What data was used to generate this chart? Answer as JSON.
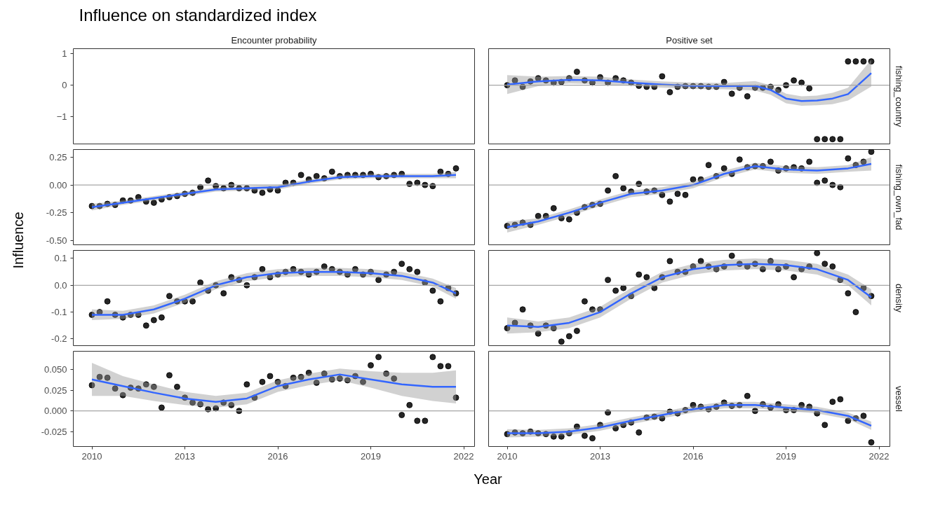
{
  "chart_data": [
    {
      "type": "scatter",
      "title": "Influence on standardized index",
      "subtitle": "Encounter probability",
      "xlabel": "Year",
      "ylabel": "Influence",
      "xlim": [
        2009.4,
        2022.35
      ],
      "ylim": [
        -1.85,
        1.15
      ],
      "yticks": [
        -1,
        0,
        1
      ],
      "tick_labels": "y"
    },
    {
      "type": "scatter",
      "subtitle": "Positive set",
      "y2label": "fishing_country",
      "xlim": [
        2009.4,
        2022.35
      ],
      "ylim": [
        -1.85,
        1.15
      ],
      "tick_labels": false,
      "marker": "circle",
      "ref_lines": [
        {
          "axis": "y",
          "value": 0
        }
      ],
      "x": [
        2010,
        2010.25,
        2010.5,
        2010.75,
        2011,
        2011.25,
        2011.5,
        2011.75,
        2012,
        2012.25,
        2012.5,
        2012.75,
        2013,
        2013.25,
        2013.5,
        2013.75,
        2014,
        2014.25,
        2014.5,
        2014.75,
        2015,
        2015.25,
        2015.5,
        2015.75,
        2016,
        2016.25,
        2016.5,
        2016.75,
        2017,
        2017.25,
        2017.5,
        2017.75,
        2018,
        2018.25,
        2018.5,
        2018.75,
        2019,
        2019.25,
        2019.5,
        2019.75,
        2020,
        2020.25,
        2020.5,
        2020.75,
        2021,
        2021.25,
        2021.5,
        2021.75
      ],
      "series": [
        {
          "type": "scatter",
          "color": "#000000",
          "values": [
            0.0,
            0.15,
            -0.05,
            0.12,
            0.22,
            0.15,
            0.08,
            0.1,
            0.22,
            0.42,
            0.15,
            0.08,
            0.25,
            0.08,
            0.22,
            0.15,
            0.08,
            -0.02,
            -0.05,
            -0.05,
            0.28,
            -0.22,
            -0.05,
            -0.03,
            -0.03,
            -0.03,
            -0.05,
            -0.05,
            0.1,
            -0.27,
            -0.08,
            -0.35,
            -0.08,
            -0.08,
            -0.05,
            -0.15,
            0.0,
            0.15,
            0.08,
            -0.1,
            -1.7,
            -1.7,
            -1.7,
            -1.7,
            0.75,
            0.75,
            0.75,
            0.75
          ]
        },
        {
          "type": "line",
          "color": "#3366ff",
          "x": [
            2010,
            2011,
            2012,
            2013,
            2014,
            2015,
            2016,
            2017,
            2018,
            2018.5,
            2019,
            2019.5,
            2020,
            2020.5,
            2021,
            2021.75
          ],
          "marker": "none",
          "values": [
            0.02,
            0.12,
            0.17,
            0.15,
            0.08,
            0.02,
            -0.02,
            -0.03,
            -0.02,
            -0.15,
            -0.42,
            -0.5,
            -0.48,
            -0.42,
            -0.28,
            0.38
          ],
          "lower": [
            -0.28,
            -0.03,
            0.05,
            0.03,
            -0.02,
            -0.08,
            -0.12,
            -0.13,
            -0.17,
            -0.3,
            -0.57,
            -0.65,
            -0.63,
            -0.6,
            -0.48,
            -0.04
          ],
          "upper": [
            0.32,
            0.27,
            0.29,
            0.27,
            0.18,
            0.12,
            0.08,
            0.07,
            0.13,
            0.0,
            -0.27,
            -0.35,
            -0.33,
            -0.24,
            -0.08,
            0.8
          ]
        }
      ]
    },
    {
      "type": "scatter",
      "xlim": [
        2009.4,
        2022.35
      ],
      "ylim": [
        -0.54,
        0.32
      ],
      "yticks": [
        {
          "value": -0.5,
          "label": "-0.50"
        },
        {
          "value": -0.25,
          "label": "-0.25"
        },
        {
          "value": 0,
          "label": "0.00"
        },
        {
          "value": 0.25,
          "label": "0.25"
        }
      ],
      "tick_labels": "y",
      "marker": "circle",
      "ref_lines": [
        {
          "axis": "y",
          "value": 0
        }
      ],
      "x": [
        2010,
        2010.25,
        2010.5,
        2010.75,
        2011,
        2011.25,
        2011.5,
        2011.75,
        2012,
        2012.25,
        2012.5,
        2012.75,
        2013,
        2013.25,
        2013.5,
        2013.75,
        2014,
        2014.25,
        2014.5,
        2014.75,
        2015,
        2015.25,
        2015.5,
        2015.75,
        2016,
        2016.25,
        2016.5,
        2016.75,
        2017,
        2017.25,
        2017.5,
        2017.75,
        2018,
        2018.25,
        2018.5,
        2018.75,
        2019,
        2019.25,
        2019.5,
        2019.75,
        2020,
        2020.25,
        2020.5,
        2020.75,
        2021,
        2021.25,
        2021.5,
        2021.75
      ],
      "series": [
        {
          "type": "scatter",
          "color": "#000000",
          "values": [
            -0.19,
            -0.19,
            -0.17,
            -0.18,
            -0.14,
            -0.14,
            -0.11,
            -0.15,
            -0.16,
            -0.13,
            -0.11,
            -0.1,
            -0.08,
            -0.07,
            -0.02,
            0.04,
            -0.01,
            -0.03,
            0.0,
            -0.03,
            -0.03,
            -0.05,
            -0.07,
            -0.04,
            -0.05,
            0.02,
            0.02,
            0.09,
            0.05,
            0.08,
            0.06,
            0.12,
            0.08,
            0.09,
            0.09,
            0.09,
            0.1,
            0.07,
            0.08,
            0.09,
            0.1,
            0.01,
            0.02,
            0.0,
            -0.01,
            0.12,
            0.1,
            0.15
          ]
        },
        {
          "type": "line",
          "color": "#3366ff",
          "x": [
            2010,
            2011,
            2012,
            2013,
            2014,
            2015,
            2016,
            2017,
            2018,
            2019,
            2020,
            2021,
            2021.75
          ],
          "marker": "none",
          "values": [
            -0.2,
            -0.16,
            -0.12,
            -0.08,
            -0.04,
            -0.03,
            -0.02,
            0.03,
            0.07,
            0.08,
            0.08,
            0.08,
            0.09
          ],
          "lower": [
            -0.23,
            -0.18,
            -0.14,
            -0.1,
            -0.06,
            -0.05,
            -0.04,
            0.01,
            0.05,
            0.06,
            0.06,
            0.06,
            0.06
          ],
          "upper": [
            -0.17,
            -0.14,
            -0.1,
            -0.06,
            -0.02,
            -0.01,
            0.0,
            0.05,
            0.09,
            0.1,
            0.1,
            0.1,
            0.12
          ]
        }
      ]
    },
    {
      "type": "scatter",
      "y2label": "fishing_own_fad",
      "xlim": [
        2009.4,
        2022.35
      ],
      "ylim": [
        -0.54,
        0.32
      ],
      "tick_labels": false,
      "marker": "circle",
      "ref_lines": [
        {
          "axis": "y",
          "value": 0
        }
      ],
      "x": [
        2010,
        2010.25,
        2010.5,
        2010.75,
        2011,
        2011.25,
        2011.5,
        2011.75,
        2012,
        2012.25,
        2012.5,
        2012.75,
        2013,
        2013.25,
        2013.5,
        2013.75,
        2014,
        2014.25,
        2014.5,
        2014.75,
        2015,
        2015.25,
        2015.5,
        2015.75,
        2016,
        2016.25,
        2016.5,
        2016.75,
        2017,
        2017.25,
        2017.5,
        2017.75,
        2018,
        2018.25,
        2018.5,
        2018.75,
        2019,
        2019.25,
        2019.5,
        2019.75,
        2020,
        2020.25,
        2020.5,
        2020.75,
        2021,
        2021.25,
        2021.5,
        2021.75
      ],
      "series": [
        {
          "type": "scatter",
          "color": "#000000",
          "values": [
            -0.37,
            -0.36,
            -0.34,
            -0.36,
            -0.28,
            -0.28,
            -0.21,
            -0.3,
            -0.31,
            -0.25,
            -0.2,
            -0.18,
            -0.17,
            -0.05,
            0.08,
            -0.03,
            -0.06,
            0.01,
            -0.06,
            -0.05,
            -0.09,
            -0.15,
            -0.08,
            -0.09,
            0.05,
            0.05,
            0.18,
            0.08,
            0.15,
            0.1,
            0.23,
            0.16,
            0.17,
            0.17,
            0.21,
            0.13,
            0.15,
            0.16,
            0.15,
            0.21,
            0.02,
            0.04,
            0.0,
            -0.02,
            0.24,
            0.18,
            0.21,
            0.3
          ]
        },
        {
          "type": "line",
          "color": "#3366ff",
          "x": [
            2010,
            2011,
            2012,
            2013,
            2014,
            2015,
            2016,
            2017,
            2018,
            2019,
            2020,
            2021,
            2021.75
          ],
          "marker": "none",
          "values": [
            -0.38,
            -0.33,
            -0.25,
            -0.16,
            -0.08,
            -0.05,
            0.0,
            0.1,
            0.17,
            0.14,
            0.13,
            0.15,
            0.19
          ],
          "lower": [
            -0.43,
            -0.36,
            -0.28,
            -0.19,
            -0.11,
            -0.08,
            -0.03,
            0.07,
            0.14,
            0.11,
            0.1,
            0.12,
            0.13
          ],
          "upper": [
            -0.33,
            -0.3,
            -0.22,
            -0.13,
            -0.05,
            -0.02,
            0.03,
            0.13,
            0.2,
            0.17,
            0.16,
            0.18,
            0.25
          ]
        }
      ]
    },
    {
      "type": "scatter",
      "xlim": [
        2009.4,
        2022.35
      ],
      "ylim": [
        -0.225,
        0.13
      ],
      "yticks": [
        {
          "value": -0.2,
          "label": "-0.2"
        },
        {
          "value": -0.1,
          "label": "-0.1"
        },
        {
          "value": 0,
          "label": "0.0"
        },
        {
          "value": 0.1,
          "label": "0.1"
        }
      ],
      "tick_labels": "y",
      "marker": "circle",
      "ref_lines": [
        {
          "axis": "y",
          "value": 0
        }
      ],
      "x": [
        2010,
        2010.25,
        2010.5,
        2010.75,
        2011,
        2011.25,
        2011.5,
        2011.75,
        2012,
        2012.25,
        2012.5,
        2012.75,
        2013,
        2013.25,
        2013.5,
        2013.75,
        2014,
        2014.25,
        2014.5,
        2014.75,
        2015,
        2015.25,
        2015.5,
        2015.75,
        2016,
        2016.25,
        2016.5,
        2016.75,
        2017,
        2017.25,
        2017.5,
        2017.75,
        2018,
        2018.25,
        2018.5,
        2018.75,
        2019,
        2019.25,
        2019.5,
        2019.75,
        2020,
        2020.25,
        2020.5,
        2020.75,
        2021,
        2021.25,
        2021.5,
        2021.75
      ],
      "series": [
        {
          "type": "scatter",
          "color": "#000000",
          "values": [
            -0.11,
            -0.1,
            -0.06,
            -0.11,
            -0.12,
            -0.11,
            -0.11,
            -0.15,
            -0.13,
            -0.12,
            -0.04,
            -0.06,
            -0.06,
            -0.06,
            0.01,
            -0.02,
            0.0,
            -0.03,
            0.03,
            0.02,
            0.0,
            0.03,
            0.06,
            0.03,
            0.04,
            0.05,
            0.06,
            0.05,
            0.04,
            0.05,
            0.07,
            0.06,
            0.05,
            0.04,
            0.06,
            0.04,
            0.05,
            0.02,
            0.04,
            0.05,
            0.08,
            0.06,
            0.05,
            0.01,
            -0.02,
            -0.06,
            -0.01,
            -0.03
          ]
        },
        {
          "type": "line",
          "color": "#3366ff",
          "x": [
            2010,
            2011,
            2012,
            2013,
            2014,
            2015,
            2016,
            2017,
            2018,
            2019,
            2020,
            2021,
            2021.75
          ],
          "marker": "none",
          "values": [
            -0.11,
            -0.11,
            -0.09,
            -0.05,
            0.0,
            0.03,
            0.045,
            0.05,
            0.05,
            0.045,
            0.035,
            0.01,
            -0.03
          ],
          "lower": [
            -0.13,
            -0.125,
            -0.105,
            -0.065,
            -0.015,
            0.015,
            0.03,
            0.035,
            0.035,
            0.03,
            0.02,
            -0.005,
            -0.05
          ],
          "upper": [
            -0.09,
            -0.095,
            -0.075,
            -0.035,
            0.015,
            0.045,
            0.06,
            0.065,
            0.065,
            0.06,
            0.05,
            0.025,
            -0.01
          ]
        }
      ]
    },
    {
      "type": "scatter",
      "y2label": "density",
      "xlim": [
        2009.4,
        2022.35
      ],
      "ylim": [
        -0.225,
        0.13
      ],
      "tick_labels": false,
      "marker": "circle",
      "ref_lines": [
        {
          "axis": "y",
          "value": 0
        }
      ],
      "x": [
        2010,
        2010.25,
        2010.5,
        2010.75,
        2011,
        2011.25,
        2011.5,
        2011.75,
        2012,
        2012.25,
        2012.5,
        2012.75,
        2013,
        2013.25,
        2013.5,
        2013.75,
        2014,
        2014.25,
        2014.5,
        2014.75,
        2015,
        2015.25,
        2015.5,
        2015.75,
        2016,
        2016.25,
        2016.5,
        2016.75,
        2017,
        2017.25,
        2017.5,
        2017.75,
        2018,
        2018.25,
        2018.5,
        2018.75,
        2019,
        2019.25,
        2019.5,
        2019.75,
        2020,
        2020.25,
        2020.5,
        2020.75,
        2021,
        2021.25,
        2021.5,
        2021.75
      ],
      "series": [
        {
          "type": "scatter",
          "color": "#000000",
          "values": [
            -0.16,
            -0.14,
            -0.09,
            -0.15,
            -0.18,
            -0.15,
            -0.16,
            -0.21,
            -0.19,
            -0.17,
            -0.06,
            -0.09,
            -0.09,
            0.02,
            -0.02,
            -0.01,
            -0.04,
            0.04,
            0.03,
            -0.01,
            0.03,
            0.09,
            0.05,
            0.05,
            0.07,
            0.09,
            0.07,
            0.06,
            0.07,
            0.11,
            0.08,
            0.07,
            0.08,
            0.06,
            0.09,
            0.06,
            0.07,
            0.03,
            0.06,
            0.07,
            0.12,
            0.08,
            0.07,
            0.02,
            -0.03,
            -0.1,
            -0.01,
            -0.04
          ]
        },
        {
          "type": "line",
          "color": "#3366ff",
          "x": [
            2010,
            2011,
            2012,
            2013,
            2014,
            2015,
            2016,
            2017,
            2018,
            2019,
            2020,
            2021,
            2021.75
          ],
          "marker": "none",
          "values": [
            -0.15,
            -0.155,
            -0.14,
            -0.1,
            -0.03,
            0.03,
            0.06,
            0.075,
            0.08,
            0.075,
            0.06,
            0.02,
            -0.045
          ],
          "lower": [
            -0.18,
            -0.175,
            -0.16,
            -0.12,
            -0.05,
            0.01,
            0.04,
            0.055,
            0.06,
            0.055,
            0.04,
            0.0,
            -0.075
          ],
          "upper": [
            -0.12,
            -0.135,
            -0.12,
            -0.08,
            -0.01,
            0.05,
            0.08,
            0.095,
            0.1,
            0.095,
            0.08,
            0.04,
            -0.015
          ]
        }
      ]
    },
    {
      "type": "scatter",
      "xlim": [
        2009.4,
        2022.35
      ],
      "ylim": [
        -0.043,
        0.072
      ],
      "xticks": [
        2010,
        2013,
        2016,
        2019,
        2022
      ],
      "yticks": [
        {
          "value": -0.025,
          "label": "-0.025"
        },
        {
          "value": 0,
          "label": "0.000"
        },
        {
          "value": 0.025,
          "label": "0.025"
        },
        {
          "value": 0.05,
          "label": "0.050"
        }
      ],
      "marker": "circle",
      "ref_lines": [
        {
          "axis": "y",
          "value": 0
        }
      ],
      "x": [
        2010,
        2010.25,
        2010.5,
        2010.75,
        2011,
        2011.25,
        2011.5,
        2011.75,
        2012,
        2012.25,
        2012.5,
        2012.75,
        2013,
        2013.25,
        2013.5,
        2013.75,
        2014,
        2014.25,
        2014.5,
        2014.75,
        2015,
        2015.25,
        2015.5,
        2015.75,
        2016,
        2016.25,
        2016.5,
        2016.75,
        2017,
        2017.25,
        2017.5,
        2017.75,
        2018,
        2018.25,
        2018.5,
        2018.75,
        2019,
        2019.25,
        2019.5,
        2019.75,
        2020,
        2020.25,
        2020.5,
        2020.75,
        2021,
        2021.25,
        2021.5,
        2021.75
      ],
      "series": [
        {
          "type": "scatter",
          "color": "#000000",
          "values": [
            0.031,
            0.041,
            0.04,
            0.027,
            0.019,
            0.028,
            0.027,
            0.032,
            0.029,
            0.004,
            0.043,
            0.029,
            0.016,
            0.01,
            0.008,
            0.002,
            0.003,
            0.01,
            0.007,
            0.0,
            0.032,
            0.016,
            0.035,
            0.042,
            0.035,
            0.03,
            0.04,
            0.041,
            0.046,
            0.034,
            0.045,
            0.038,
            0.039,
            0.037,
            0.042,
            0.035,
            0.055,
            0.065,
            0.045,
            0.039,
            -0.005,
            0.007,
            -0.012,
            -0.012,
            0.065,
            0.054,
            0.054,
            0.016
          ]
        },
        {
          "type": "line",
          "color": "#3366ff",
          "x": [
            2010,
            2011,
            2012,
            2013,
            2014,
            2015,
            2016,
            2017,
            2018,
            2019,
            2020,
            2021,
            2021.75
          ],
          "marker": "none",
          "values": [
            0.038,
            0.03,
            0.022,
            0.015,
            0.011,
            0.015,
            0.03,
            0.038,
            0.044,
            0.038,
            0.032,
            0.029,
            0.029
          ],
          "lower": [
            0.018,
            0.018,
            0.012,
            0.007,
            0.004,
            0.008,
            0.023,
            0.031,
            0.037,
            0.028,
            0.018,
            0.012,
            0.009
          ],
          "upper": [
            0.058,
            0.042,
            0.032,
            0.023,
            0.018,
            0.022,
            0.037,
            0.045,
            0.051,
            0.048,
            0.046,
            0.046,
            0.049
          ]
        }
      ]
    },
    {
      "type": "scatter",
      "y2label": "vessel",
      "xlim": [
        2009.4,
        2022.35
      ],
      "ylim": [
        -0.043,
        0.072
      ],
      "xticks": [
        2010,
        2013,
        2016,
        2019,
        2022
      ],
      "tick_labels": "x",
      "marker": "circle",
      "ref_lines": [
        {
          "axis": "y",
          "value": 0
        }
      ],
      "x": [
        2010,
        2010.25,
        2010.5,
        2010.75,
        2011,
        2011.25,
        2011.5,
        2011.75,
        2012,
        2012.25,
        2012.5,
        2012.75,
        2013,
        2013.25,
        2013.5,
        2013.75,
        2014,
        2014.25,
        2014.5,
        2014.75,
        2015,
        2015.25,
        2015.5,
        2015.75,
        2016,
        2016.25,
        2016.5,
        2016.75,
        2017,
        2017.25,
        2017.5,
        2017.75,
        2018,
        2018.25,
        2018.5,
        2018.75,
        2019,
        2019.25,
        2019.5,
        2019.75,
        2020,
        2020.25,
        2020.5,
        2020.75,
        2021,
        2021.25,
        2021.5,
        2021.75
      ],
      "series": [
        {
          "type": "scatter",
          "color": "#000000",
          "values": [
            -0.028,
            -0.026,
            -0.027,
            -0.025,
            -0.027,
            -0.028,
            -0.031,
            -0.031,
            -0.027,
            -0.019,
            -0.03,
            -0.033,
            -0.017,
            -0.002,
            -0.021,
            -0.017,
            -0.014,
            -0.026,
            -0.008,
            -0.007,
            -0.009,
            -0.001,
            -0.003,
            0.001,
            0.007,
            0.005,
            0.002,
            0.005,
            0.01,
            0.006,
            0.007,
            0.018,
            0.0,
            0.008,
            0.004,
            0.008,
            0.001,
            0.001,
            0.007,
            0.005,
            -0.003,
            -0.017,
            0.011,
            0.014,
            -0.012,
            -0.009,
            -0.006,
            -0.038
          ]
        },
        {
          "type": "line",
          "color": "#3366ff",
          "x": [
            2010,
            2011,
            2012,
            2013,
            2014,
            2015,
            2016,
            2017,
            2018,
            2019,
            2020,
            2021,
            2021.75
          ],
          "marker": "none",
          "values": [
            -0.027,
            -0.027,
            -0.025,
            -0.02,
            -0.012,
            -0.005,
            0.002,
            0.007,
            0.007,
            0.004,
            0.001,
            -0.006,
            -0.018
          ],
          "lower": [
            -0.032,
            -0.031,
            -0.029,
            -0.024,
            -0.016,
            -0.009,
            -0.002,
            0.003,
            0.003,
            0.0,
            -0.003,
            -0.01,
            -0.023
          ],
          "upper": [
            -0.022,
            -0.023,
            -0.021,
            -0.016,
            -0.008,
            -0.001,
            0.006,
            0.011,
            0.011,
            0.008,
            0.005,
            -0.002,
            -0.013
          ]
        }
      ]
    }
  ]
}
